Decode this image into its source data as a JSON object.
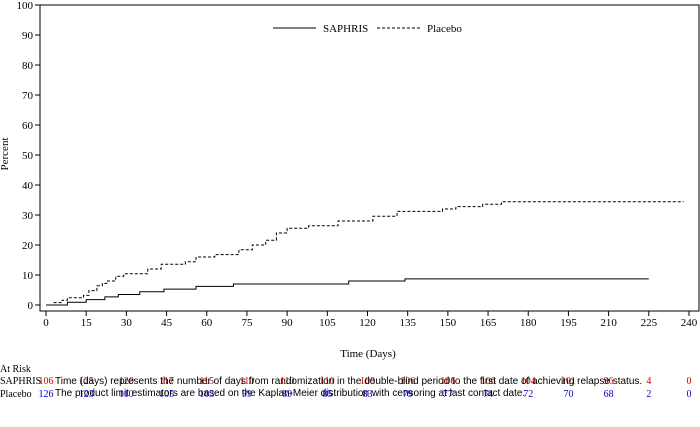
{
  "chart_data": {
    "type": "step-line",
    "ylabel": "Percent",
    "xlabel": "Time (Days)",
    "ylim": [
      0,
      100
    ],
    "xlim": [
      0,
      240
    ],
    "yticks": [
      0,
      10,
      20,
      30,
      40,
      50,
      60,
      70,
      80,
      90,
      100
    ],
    "xticks": [
      0,
      15,
      30,
      45,
      60,
      75,
      90,
      105,
      120,
      135,
      150,
      165,
      180,
      195,
      210,
      225,
      240
    ],
    "legend_position": "top-center",
    "series": [
      {
        "name": "SAPHRIS",
        "line_style": "solid",
        "color": "#000000",
        "points": [
          [
            0,
            0
          ],
          [
            8,
            0
          ],
          [
            8,
            0.9
          ],
          [
            15,
            0.9
          ],
          [
            15,
            1.8
          ],
          [
            22,
            1.8
          ],
          [
            22,
            2.7
          ],
          [
            27,
            2.7
          ],
          [
            27,
            3.5
          ],
          [
            35,
            3.5
          ],
          [
            35,
            4.4
          ],
          [
            44,
            4.4
          ],
          [
            44,
            5.3
          ],
          [
            56,
            5.3
          ],
          [
            56,
            6.2
          ],
          [
            70,
            6.2
          ],
          [
            70,
            7.0
          ],
          [
            90,
            7.0
          ],
          [
            90,
            7.0
          ],
          [
            113,
            7.0
          ],
          [
            113,
            8.0
          ],
          [
            134,
            8.0
          ],
          [
            134,
            8.7
          ],
          [
            225,
            8.7
          ]
        ]
      },
      {
        "name": "Placebo",
        "line_style": "dashed",
        "color": "#000000",
        "points": [
          [
            0,
            0
          ],
          [
            3,
            0
          ],
          [
            3,
            0.8
          ],
          [
            6,
            0.8
          ],
          [
            6,
            1.6
          ],
          [
            8,
            1.6
          ],
          [
            8,
            2.4
          ],
          [
            14,
            2.4
          ],
          [
            14,
            3.2
          ],
          [
            16,
            3.2
          ],
          [
            16,
            4.8
          ],
          [
            19,
            4.8
          ],
          [
            19,
            6.4
          ],
          [
            21,
            6.4
          ],
          [
            21,
            7.2
          ],
          [
            23,
            7.2
          ],
          [
            23,
            8.0
          ],
          [
            26,
            8.0
          ],
          [
            26,
            9.6
          ],
          [
            29,
            9.6
          ],
          [
            29,
            10.4
          ],
          [
            38,
            10.4
          ],
          [
            38,
            12.0
          ],
          [
            43,
            12.0
          ],
          [
            43,
            13.6
          ],
          [
            52,
            13.6
          ],
          [
            52,
            14.4
          ],
          [
            56,
            14.4
          ],
          [
            56,
            16.0
          ],
          [
            63,
            16.0
          ],
          [
            63,
            16.8
          ],
          [
            72,
            16.8
          ],
          [
            72,
            18.4
          ],
          [
            77,
            18.4
          ],
          [
            77,
            20.0
          ],
          [
            82,
            20.0
          ],
          [
            82,
            21.6
          ],
          [
            86,
            21.6
          ],
          [
            86,
            24.0
          ],
          [
            90,
            24.0
          ],
          [
            90,
            25.6
          ],
          [
            98,
            25.6
          ],
          [
            98,
            26.4
          ],
          [
            109,
            26.4
          ],
          [
            109,
            28.0
          ],
          [
            122,
            28.0
          ],
          [
            122,
            29.6
          ],
          [
            131,
            29.6
          ],
          [
            131,
            31.2
          ],
          [
            148,
            31.2
          ],
          [
            148,
            32.0
          ],
          [
            153,
            32.0
          ],
          [
            153,
            32.8
          ],
          [
            163,
            32.8
          ],
          [
            163,
            33.6
          ],
          [
            170,
            33.6
          ],
          [
            170,
            34.4
          ],
          [
            238,
            34.4
          ]
        ]
      }
    ],
    "at_risk": {
      "header": "At Risk",
      "rows": [
        {
          "label": "SAPHRIS",
          "color": "#cc0000",
          "values": [
            "106",
            "125",
            "120",
            "117",
            "115",
            "110",
            "110",
            "110",
            "108",
            "106",
            "106",
            "106",
            "104",
            "101",
            "96",
            "4",
            "0"
          ]
        },
        {
          "label": "Placebo",
          "color": "#0000cc",
          "values": [
            "126",
            "123",
            "110",
            "105",
            "103",
            "99",
            "89",
            "85",
            "83",
            "79",
            "77",
            "74",
            "72",
            "70",
            "68",
            "2",
            "0"
          ]
        }
      ]
    }
  },
  "footnotes": [
    "Time (days) represents the number of days from randomization in the double-blind period to the first date of achieving relapse status.",
    "The product limit estimators are based on the Kaplan-Meier distribution with censoring at last contact date."
  ]
}
